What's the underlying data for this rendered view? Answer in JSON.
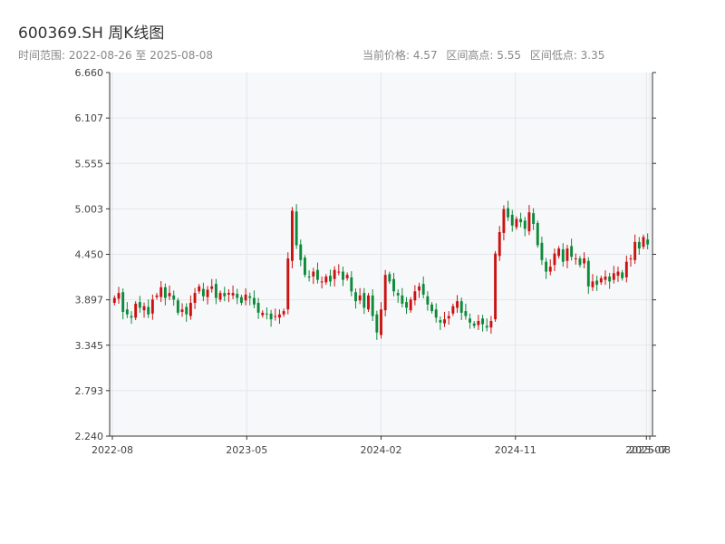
{
  "header": {
    "title": "600369.SH 周K线图",
    "subtitle": "时间范围: 2022-08-26 至 2025-08-08",
    "stats": {
      "current": "当前价格: 4.57",
      "high": "区间高点: 5.55",
      "low": "区间低点: 3.35"
    }
  },
  "colors": {
    "up": "#cc1111",
    "down": "#0d8a3a",
    "plot_bg": "#f7f8fa",
    "grid": "#e3e6ea",
    "axis": "#333333"
  },
  "chart_data": {
    "type": "candlestick",
    "title": "600369.SH 周K线图",
    "ylim": [
      2.24,
      6.66
    ],
    "y_ticks": [
      "2.240",
      "2.793",
      "3.345",
      "3.897",
      "4.450",
      "5.003",
      "5.555",
      "6.107",
      "6.660"
    ],
    "x_ticks": [
      {
        "label": "2022-08",
        "week": 0
      },
      {
        "label": "2023-05",
        "week": 40
      },
      {
        "label": "2024-02",
        "week": 80
      },
      {
        "label": "2024-11",
        "week": 120
      },
      {
        "label": "2025-07",
        "week": 159
      },
      {
        "label": "2025-08",
        "week": 160
      }
    ],
    "x_range": [
      0,
      160
    ],
    "grid": true,
    "closes": [
      3.92,
      3.98,
      3.75,
      3.72,
      3.68,
      3.85,
      3.8,
      3.82,
      3.72,
      3.9,
      3.95,
      4.05,
      3.92,
      3.98,
      3.9,
      3.74,
      3.78,
      3.72,
      3.86,
      3.98,
      4.06,
      3.94,
      4.02,
      4.06,
      3.92,
      3.98,
      3.94,
      3.98,
      3.98,
      3.92,
      3.86,
      3.96,
      3.92,
      3.84,
      3.74,
      3.74,
      3.72,
      3.66,
      3.7,
      3.72,
      3.76,
      4.4,
      4.98,
      4.56,
      4.38,
      4.2,
      4.18,
      4.24,
      4.14,
      4.12,
      4.18,
      4.12,
      4.26,
      4.24,
      4.14,
      4.2,
      4.0,
      3.88,
      3.95,
      3.8,
      3.95,
      3.7,
      3.5,
      3.78,
      4.2,
      4.12,
      4.0,
      3.95,
      3.85,
      3.8,
      3.9,
      4.0,
      4.06,
      3.96,
      3.84,
      3.76,
      3.68,
      3.62,
      3.66,
      3.7,
      3.82,
      3.88,
      3.74,
      3.7,
      3.62,
      3.58,
      3.64,
      3.6,
      3.56,
      3.64,
      4.46,
      4.72,
      5.0,
      4.9,
      4.8,
      4.88,
      4.84,
      4.76,
      4.96,
      4.82,
      4.56,
      4.38,
      4.24,
      4.3,
      4.46,
      4.52,
      4.36,
      4.52,
      4.42,
      4.4,
      4.32,
      4.4,
      4.06,
      4.12,
      4.08,
      4.16,
      4.18,
      4.12,
      4.22,
      4.24,
      4.16,
      4.36,
      4.4,
      4.6,
      4.52,
      4.66,
      4.57
    ]
  }
}
